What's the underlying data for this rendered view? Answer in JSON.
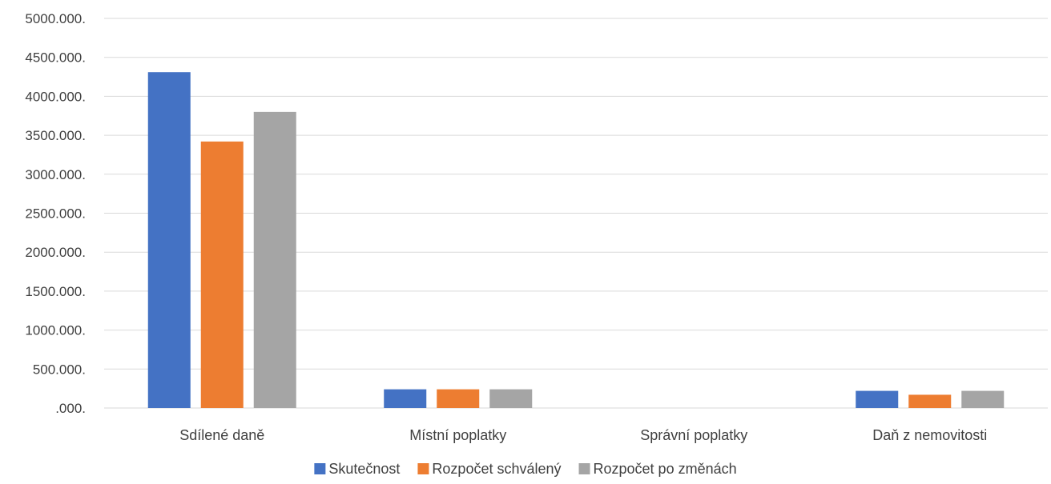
{
  "chart_data": {
    "type": "bar",
    "categories": [
      "Sdílené daně",
      "Místní poplatky",
      "Správní poplatky",
      "Daň z nemovitosti"
    ],
    "series": [
      {
        "name": "Skutečnost",
        "color": "#4472C4",
        "values": [
          4310000,
          240000,
          0,
          220000
        ]
      },
      {
        "name": "Rozpočet schválený",
        "color": "#ED7D31",
        "values": [
          3420000,
          240000,
          0,
          170000
        ]
      },
      {
        "name": "Rozpočet po změnách",
        "color": "#A5A5A5",
        "values": [
          3800000,
          240000,
          0,
          220000
        ]
      }
    ],
    "ylim": [
      0,
      5000000
    ],
    "ytick_labels": [
      ".000.",
      "500.000.",
      "1000.000.",
      "1500.000.",
      "2000.000.",
      "2500.000.",
      "3000.000.",
      "3500.000.",
      "4000.000.",
      "4500.000.",
      "5000.000."
    ],
    "grid": true,
    "legend_position": "bottom"
  }
}
